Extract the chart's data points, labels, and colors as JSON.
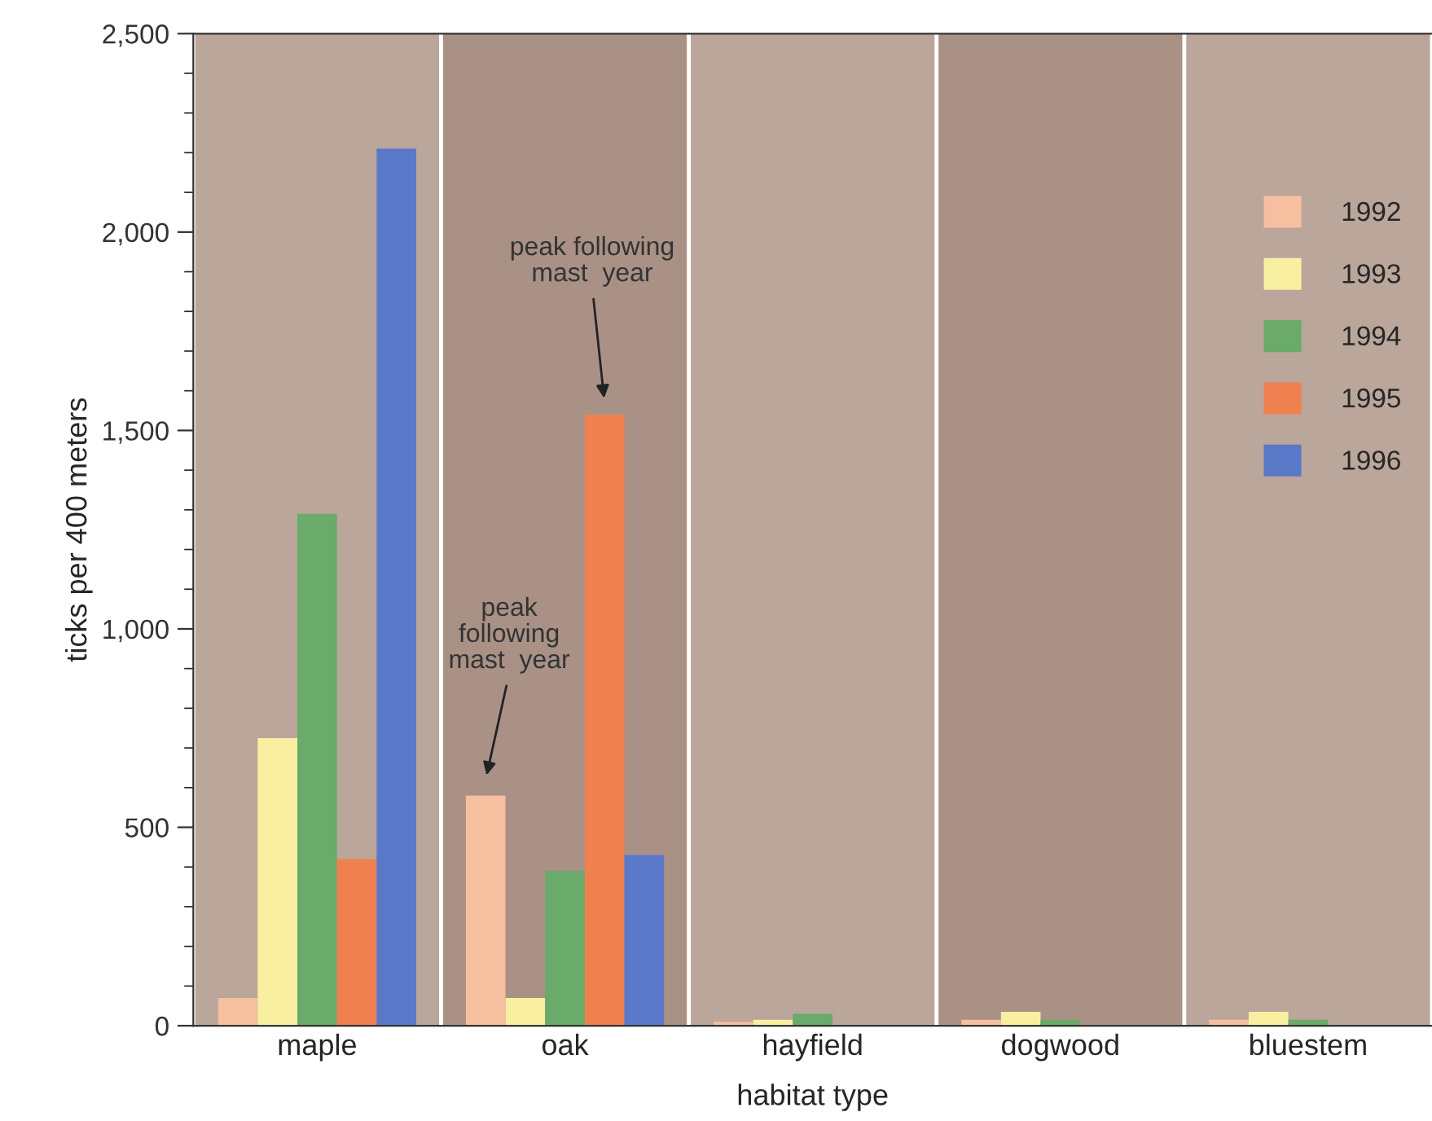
{
  "chart_data": {
    "type": "bar",
    "xlabel": "habitat type",
    "ylabel": "ticks per 400 meters",
    "categories": [
      "maple",
      "oak",
      "hayfield",
      "dogwood",
      "bluestem"
    ],
    "series": [
      {
        "name": "1992",
        "color": "#f5bfa0",
        "values": [
          70,
          580,
          10,
          15,
          15
        ]
      },
      {
        "name": "1993",
        "color": "#f8f0a0",
        "values": [
          725,
          70,
          15,
          35,
          35
        ]
      },
      {
        "name": "1994",
        "color": "#6aaa6a",
        "values": [
          1290,
          390,
          30,
          15,
          15
        ]
      },
      {
        "name": "1995",
        "color": "#f08050",
        "values": [
          420,
          1540,
          0,
          0,
          0
        ]
      },
      {
        "name": "1996",
        "color": "#5a78c8",
        "values": [
          2210,
          430,
          0,
          0,
          0
        ]
      }
    ],
    "ylim": [
      0,
      2500
    ],
    "yticks": [
      0,
      500,
      {
        "value": 1000,
        "label": "1,000"
      },
      {
        "value": 1500,
        "label": "1,500"
      },
      {
        "value": 2000,
        "label": "2,000"
      },
      {
        "value": 2500,
        "label": "2,500"
      }
    ],
    "annotations": [
      "peak\nfollowing\nmast  year",
      "peak following\nmast  year"
    ],
    "legend": "top right",
    "grid": false
  }
}
